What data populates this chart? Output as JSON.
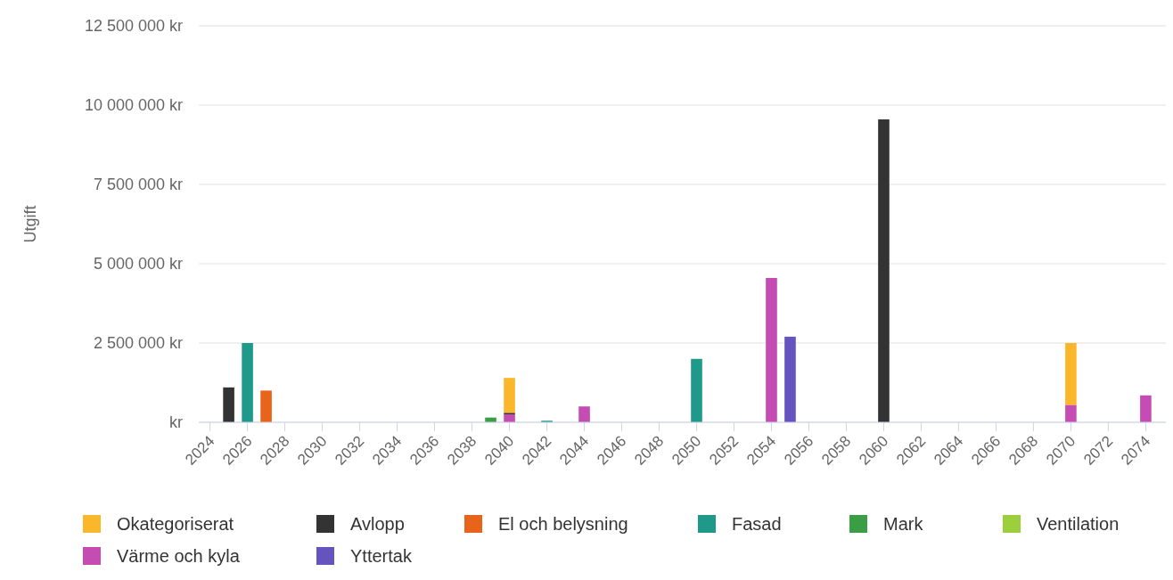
{
  "chart_data": {
    "type": "bar",
    "stacked": true,
    "ylabel": "Utgift",
    "categories": [
      "2024",
      null,
      "2026",
      null,
      "2028",
      null,
      "2030",
      null,
      "2032",
      null,
      "2034",
      null,
      "2036",
      null,
      "2038",
      null,
      "2040",
      null,
      "2042",
      null,
      "2044",
      null,
      "2046",
      null,
      "2048",
      null,
      "2050",
      null,
      "2052",
      null,
      "2054",
      null,
      "2056",
      null,
      "2058",
      null,
      "2060",
      null,
      "2062",
      null,
      "2064",
      null,
      "2066",
      null,
      "2068",
      null,
      "2070",
      null,
      "2072",
      null,
      "2074"
    ],
    "ylim": [
      0,
      12500000
    ],
    "yticks": [
      {
        "value": 0,
        "label": "kr"
      },
      {
        "value": 2500000,
        "label": "2 500 000 kr"
      },
      {
        "value": 5000000,
        "label": "5 000 000 kr"
      },
      {
        "value": 7500000,
        "label": "7 500 000 kr"
      },
      {
        "value": 10000000,
        "label": "10 000 000 kr"
      },
      {
        "value": 12500000,
        "label": "12 500 000 kr"
      }
    ],
    "grid": "y",
    "legend": "bottom",
    "series": [
      {
        "name": "Yttertak",
        "color": "#6553c0",
        "values": [
          null,
          null,
          null,
          null,
          null,
          null,
          null,
          null,
          null,
          null,
          null,
          null,
          null,
          null,
          null,
          null,
          null,
          null,
          null,
          null,
          null,
          null,
          null,
          null,
          null,
          null,
          null,
          null,
          null,
          null,
          null,
          2700000,
          null,
          null,
          null,
          null,
          null,
          null,
          null,
          null,
          null,
          null,
          null,
          null,
          null,
          null,
          null,
          null,
          null,
          null,
          null
        ]
      },
      {
        "name": "Värme och kyla",
        "color": "#c44cb3",
        "values": [
          null,
          null,
          null,
          null,
          null,
          null,
          null,
          null,
          null,
          null,
          null,
          null,
          null,
          null,
          null,
          null,
          250000,
          null,
          null,
          null,
          500000,
          null,
          null,
          null,
          null,
          null,
          null,
          null,
          null,
          null,
          4550000,
          null,
          null,
          null,
          null,
          null,
          null,
          null,
          null,
          null,
          null,
          null,
          null,
          null,
          null,
          null,
          550000,
          null,
          null,
          null,
          850000
        ]
      },
      {
        "name": "Ventilation",
        "color": "#9bcf3c",
        "values": [
          null,
          null,
          null,
          null,
          null,
          null,
          null,
          null,
          null,
          null,
          null,
          null,
          null,
          null,
          null,
          null,
          null,
          null,
          null,
          null,
          null,
          null,
          null,
          null,
          null,
          null,
          null,
          null,
          null,
          null,
          null,
          null,
          null,
          null,
          null,
          null,
          null,
          null,
          null,
          null,
          null,
          null,
          null,
          null,
          null,
          null,
          null,
          null,
          null,
          null,
          null
        ]
      },
      {
        "name": "Mark",
        "color": "#3a9e44",
        "values": [
          null,
          null,
          null,
          null,
          null,
          null,
          null,
          null,
          null,
          null,
          null,
          null,
          null,
          null,
          null,
          150000,
          null,
          null,
          null,
          null,
          null,
          null,
          null,
          null,
          null,
          null,
          null,
          null,
          null,
          null,
          null,
          null,
          null,
          null,
          null,
          null,
          null,
          null,
          null,
          null,
          null,
          null,
          null,
          null,
          null,
          null,
          null,
          null,
          null,
          null,
          null
        ]
      },
      {
        "name": "Fasad",
        "color": "#1f9a8a",
        "values": [
          null,
          null,
          2500000,
          null,
          null,
          null,
          null,
          null,
          null,
          null,
          null,
          null,
          null,
          null,
          null,
          null,
          null,
          null,
          50000,
          null,
          null,
          null,
          null,
          null,
          null,
          null,
          2000000,
          null,
          null,
          null,
          null,
          null,
          null,
          null,
          null,
          null,
          null,
          null,
          null,
          null,
          null,
          null,
          null,
          null,
          null,
          null,
          null,
          null,
          null,
          null,
          null
        ]
      },
      {
        "name": "El och belysning",
        "color": "#e8641b",
        "values": [
          null,
          null,
          null,
          1000000,
          null,
          null,
          null,
          null,
          null,
          null,
          null,
          null,
          null,
          null,
          null,
          null,
          null,
          null,
          null,
          null,
          null,
          null,
          null,
          null,
          null,
          null,
          null,
          null,
          null,
          null,
          null,
          null,
          null,
          null,
          null,
          null,
          null,
          null,
          null,
          null,
          null,
          null,
          null,
          null,
          null,
          null,
          null,
          null,
          null,
          null,
          null
        ]
      },
      {
        "name": "Avlopp",
        "color": "#333333",
        "values": [
          null,
          1100000,
          null,
          null,
          null,
          null,
          null,
          null,
          null,
          null,
          null,
          null,
          null,
          null,
          null,
          null,
          50000,
          null,
          null,
          null,
          null,
          null,
          null,
          null,
          null,
          null,
          null,
          null,
          null,
          null,
          null,
          null,
          null,
          null,
          null,
          null,
          9550000,
          null,
          null,
          null,
          null,
          null,
          null,
          null,
          null,
          null,
          null,
          null,
          null,
          null,
          null
        ]
      },
      {
        "name": "Okategoriserat",
        "color": "#fbb72c",
        "values": [
          null,
          null,
          null,
          null,
          null,
          null,
          null,
          null,
          null,
          null,
          null,
          null,
          null,
          null,
          null,
          null,
          1100000,
          null,
          null,
          null,
          null,
          null,
          null,
          null,
          null,
          null,
          null,
          null,
          null,
          null,
          null,
          null,
          null,
          null,
          null,
          null,
          null,
          null,
          null,
          null,
          null,
          null,
          null,
          null,
          null,
          null,
          1950000,
          null,
          null,
          null,
          null
        ]
      }
    ]
  }
}
